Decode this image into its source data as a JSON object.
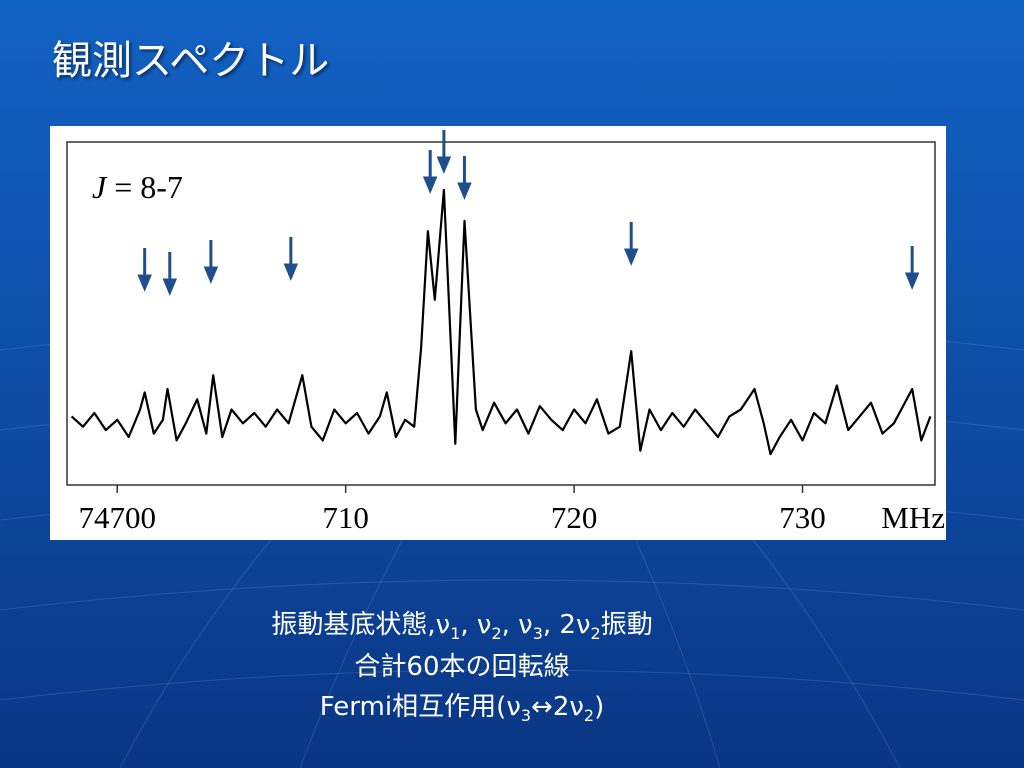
{
  "title": "観測スペクトル",
  "chart_data": {
    "type": "line",
    "label": "J = 8-7",
    "x_label": "MHz",
    "color": "#000000",
    "arrow_color": "#1f4e8c",
    "xlim": [
      74697.8,
      74735.8
    ],
    "ylim": [
      0,
      100
    ],
    "xticks": [
      74700,
      {
        "value": 74710,
        "label": "710"
      },
      {
        "value": 74720,
        "label": "720"
      },
      {
        "value": 74730,
        "label": "730"
      }
    ],
    "arrows": [
      74701.2,
      74702.3,
      74704.1,
      74707.6,
      74713.7,
      74714.3,
      74715.2,
      74722.5,
      74734.8
    ],
    "x": [
      74698.0,
      74698.5,
      74699.0,
      74699.5,
      74700.0,
      74700.5,
      74701.0,
      74701.2,
      74701.6,
      74702.0,
      74702.2,
      74702.6,
      74703.0,
      74703.5,
      74703.9,
      74704.2,
      74704.6,
      74705.0,
      74705.5,
      74706.0,
      74706.5,
      74707.0,
      74707.5,
      74708.1,
      74708.5,
      74709.0,
      74709.5,
      74710.0,
      74710.5,
      74711.0,
      74711.5,
      74711.8,
      74712.2,
      74712.6,
      74713.0,
      74713.3,
      74713.6,
      74713.9,
      74714.3,
      74714.8,
      74715.2,
      74715.7,
      74716.0,
      74716.5,
      74717.0,
      74717.5,
      74718.0,
      74718.5,
      74719.0,
      74719.5,
      74720.0,
      74720.5,
      74721.0,
      74721.5,
      74722.0,
      74722.5,
      74722.9,
      74723.3,
      74723.8,
      74724.3,
      74724.8,
      74725.3,
      74725.8,
      74726.3,
      74726.8,
      74727.3,
      74727.9,
      74728.3,
      74728.6,
      74729.0,
      74729.5,
      74730.0,
      74730.5,
      74731.0,
      74731.5,
      74732.0,
      74732.5,
      74733.0,
      74733.5,
      74734.0,
      74734.8,
      74735.2,
      74735.6
    ],
    "values": [
      20,
      17,
      21,
      16,
      19,
      14,
      22,
      27,
      15,
      19,
      28,
      13,
      18,
      25,
      15,
      32,
      14,
      22,
      18,
      21,
      17,
      22,
      18,
      32,
      17,
      13,
      22,
      18,
      21,
      15,
      20,
      27,
      14,
      19,
      17,
      40,
      74,
      54,
      86,
      12,
      77,
      22,
      16,
      24,
      18,
      22,
      15,
      23,
      19,
      16,
      22,
      18,
      25,
      15,
      17,
      39,
      10,
      22,
      16,
      21,
      17,
      22,
      18,
      14,
      20,
      22,
      28,
      18,
      9,
      14,
      19,
      13,
      21,
      18,
      29,
      16,
      20,
      24,
      15,
      18,
      28,
      13,
      20
    ]
  },
  "caption": [
    "振動基底状態,ν1, ν2, ν3, 2ν2振動",
    "合計60本の回転線",
    "Fermi相互作用(ν3↔2ν2)"
  ]
}
